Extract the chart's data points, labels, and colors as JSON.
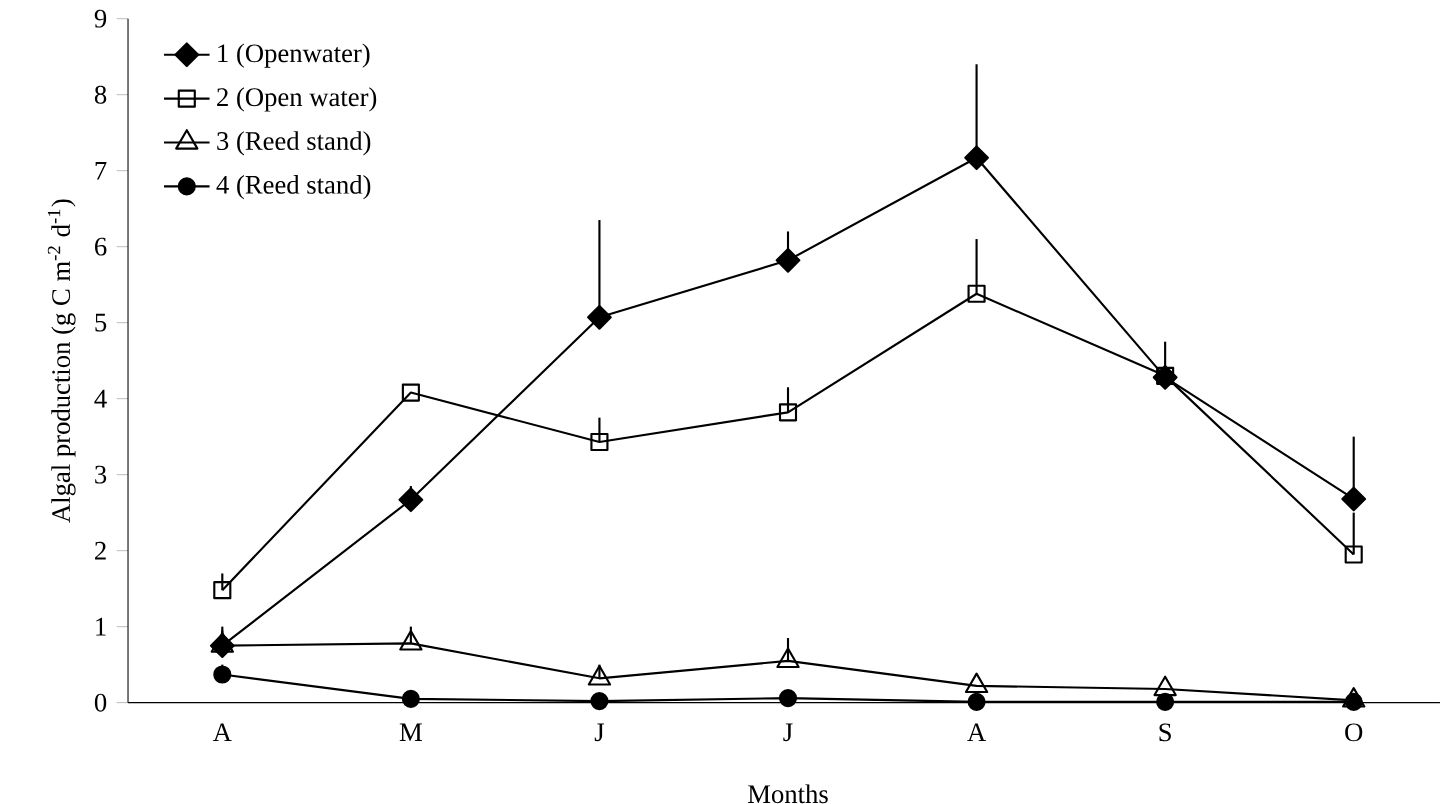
{
  "chart_data": {
    "type": "line",
    "xlabel": "Months",
    "ylabel": "Algal production (g C m$^{-2}$ d$^{-1}$)",
    "categories": [
      "A",
      "M",
      "J",
      "J",
      "A",
      "S",
      "O"
    ],
    "series": [
      {
        "name": "1 (Openwater)",
        "color": "#000000",
        "marker": "diamond",
        "values": [
          0.75,
          2.67,
          5.07,
          5.82,
          7.17,
          4.28,
          2.68
        ],
        "errors": [
          [
            0.75,
            0.95
          ],
          [
            2.67,
            2.85
          ],
          [
            5.07,
            6.35
          ],
          [
            5.82,
            6.2
          ],
          [
            7.17,
            8.4
          ],
          [
            4.28,
            4.28
          ],
          [
            2.68,
            3.5
          ]
        ]
      },
      {
        "name": "2 (Open water)",
        "color": "#000000",
        "marker": "square",
        "values": [
          1.48,
          4.08,
          3.43,
          3.82,
          5.38,
          4.3,
          1.95
        ],
        "errors": [
          [
            1.48,
            1.7
          ],
          null,
          [
            3.43,
            3.75
          ],
          [
            3.82,
            4.15
          ],
          [
            5.38,
            6.1
          ],
          [
            4.3,
            4.75
          ],
          [
            1.95,
            2.5
          ]
        ]
      },
      {
        "name": "3 (Reed stand)",
        "color": "#000000",
        "marker": "triangle",
        "values": [
          0.75,
          0.78,
          0.32,
          0.55,
          0.22,
          0.18,
          0.03
        ],
        "errors": [
          [
            0.75,
            1.0
          ],
          [
            0.78,
            1.0
          ],
          [
            0.32,
            0.5
          ],
          [
            0.55,
            0.85
          ],
          null,
          null,
          null
        ]
      },
      {
        "name": "4 (Reed stand)",
        "color": "#000000",
        "marker": "circle",
        "values": [
          0.37,
          0.05,
          0.02,
          0.06,
          0.01,
          0.01,
          0.01
        ],
        "errors": [
          [
            0.37,
            0.5
          ],
          null,
          null,
          null,
          null,
          null,
          null
        ]
      }
    ],
    "ylim": [
      0,
      9
    ],
    "yticks": [
      0,
      1,
      2,
      3,
      4,
      5,
      6,
      7,
      8,
      9
    ],
    "legend": "top left",
    "grid": false
  }
}
